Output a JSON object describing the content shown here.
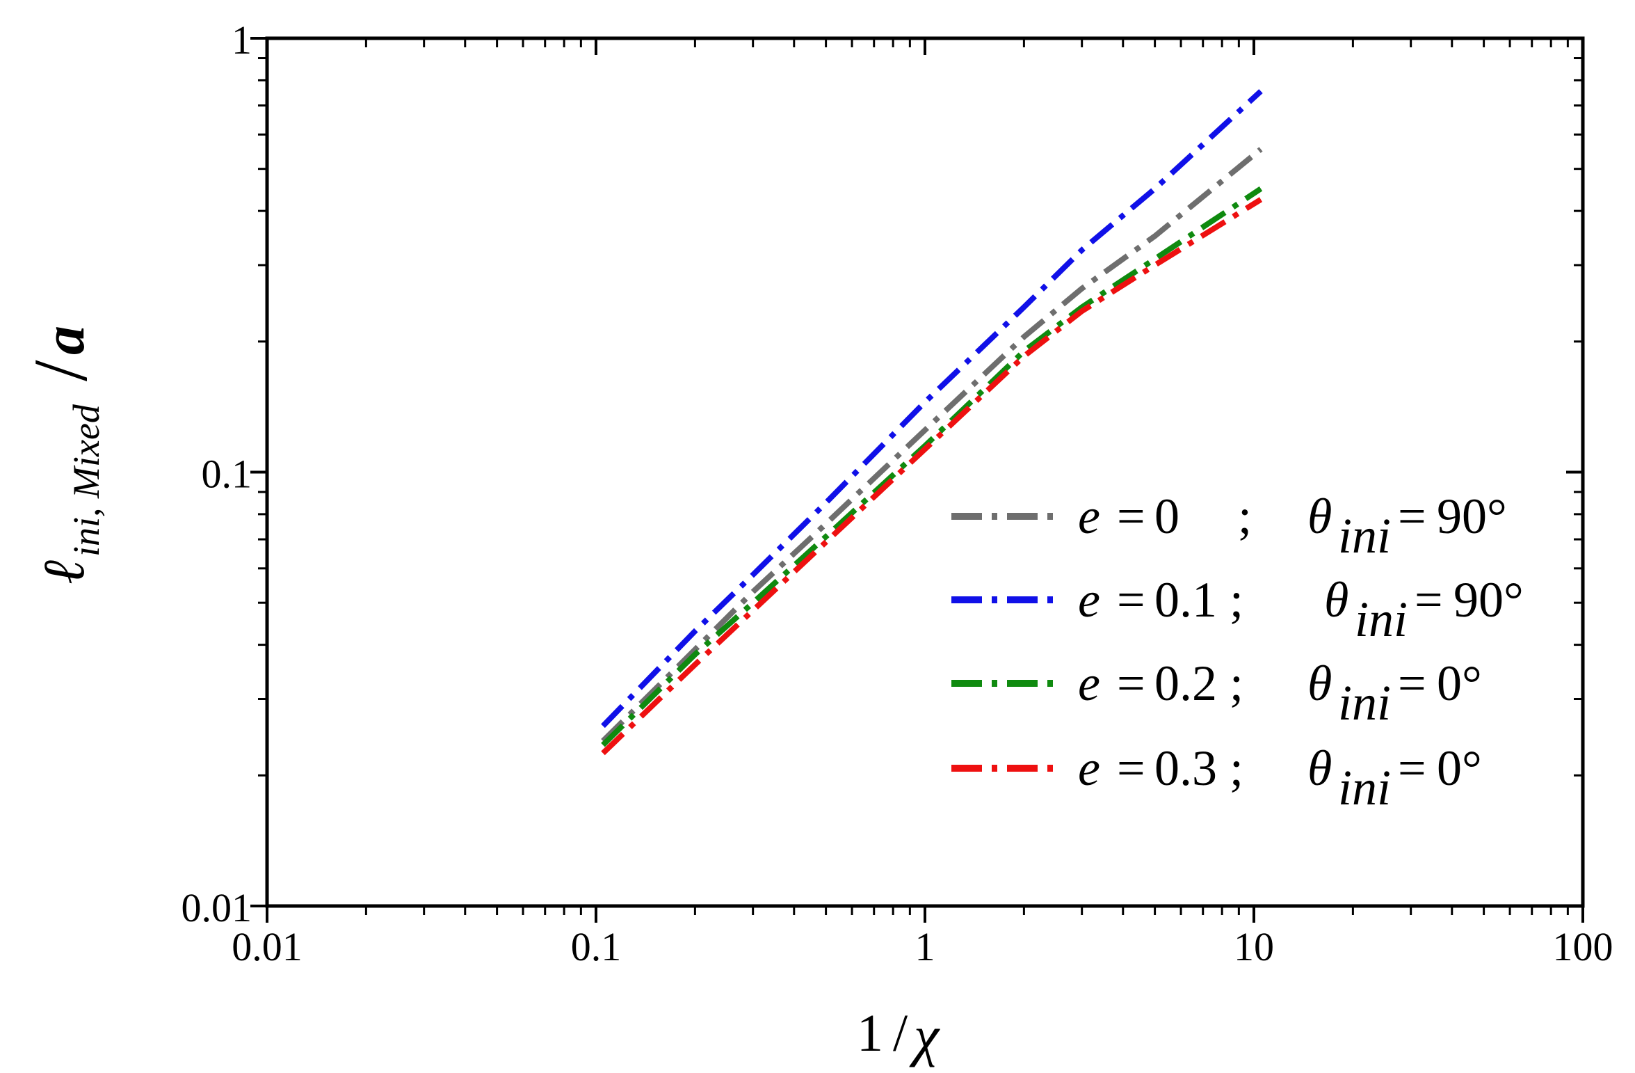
{
  "chart_data": {
    "type": "line",
    "xscale": "log",
    "yscale": "log",
    "xlim": [
      0.01,
      100
    ],
    "ylim": [
      0.01,
      1
    ],
    "x_ticks": [
      "0.01",
      "0.1",
      "1",
      "10",
      "100"
    ],
    "y_ticks": [
      "0.01",
      "0.1",
      "1"
    ],
    "xlabel": {
      "num": "1",
      "slash": "/",
      "var": "χ"
    },
    "ylabel": {
      "var": "ℓ",
      "sub": "ini, Mixed",
      "slash": "/",
      "den": "a"
    },
    "legend_position": "center-right",
    "series": [
      {
        "name": "e = 0 ; θini = 90°",
        "legend": {
          "e": "e",
          "eq1": "=",
          "eval": "0",
          "sep": ";",
          "theta": "θ",
          "sub": "ini",
          "eq2": "=",
          "tval": "90°"
        },
        "color": "#6e6e6e",
        "x": [
          0.105,
          0.2,
          0.3,
          0.5,
          1,
          2,
          3,
          5,
          10.5
        ],
        "y": [
          0.024,
          0.039,
          0.053,
          0.076,
          0.125,
          0.205,
          0.265,
          0.35,
          0.555
        ]
      },
      {
        "name": "e = 0.1; θini = 90°",
        "legend": {
          "e": "e",
          "eq1": "=",
          "eval": "0.1",
          "sep": ";",
          "theta": "θ",
          "sub": "ini",
          "eq2": "=",
          "tval": "90°"
        },
        "color": "#1010e8",
        "x": [
          0.105,
          0.2,
          0.3,
          0.5,
          1,
          2,
          3,
          5,
          10.5
        ],
        "y": [
          0.026,
          0.043,
          0.058,
          0.085,
          0.145,
          0.24,
          0.325,
          0.45,
          0.755
        ]
      },
      {
        "name": "e = 0.2; θini = 0°",
        "legend": {
          "e": "e",
          "eq1": "=",
          "eval": "0.2",
          "sep": ";",
          "theta": "θ",
          "sub": "ini",
          "eq2": "=",
          "tval": "0°"
        },
        "color": "#0f8a0f",
        "x": [
          0.105,
          0.2,
          0.3,
          0.5,
          1,
          2,
          3,
          5,
          10.5
        ],
        "y": [
          0.0235,
          0.038,
          0.05,
          0.071,
          0.115,
          0.19,
          0.24,
          0.31,
          0.45
        ]
      },
      {
        "name": "e = 0.3; θini = 0°",
        "legend": {
          "e": "e",
          "eq1": "=",
          "eval": "0.3",
          "sep": ";",
          "theta": "θ",
          "sub": "ini",
          "eq2": "=",
          "tval": "0°"
        },
        "color": "#ee1010",
        "x": [
          0.105,
          0.2,
          0.3,
          0.5,
          1,
          2,
          3,
          5,
          10.5
        ],
        "y": [
          0.0225,
          0.036,
          0.048,
          0.069,
          0.113,
          0.185,
          0.235,
          0.3,
          0.425
        ]
      }
    ]
  }
}
